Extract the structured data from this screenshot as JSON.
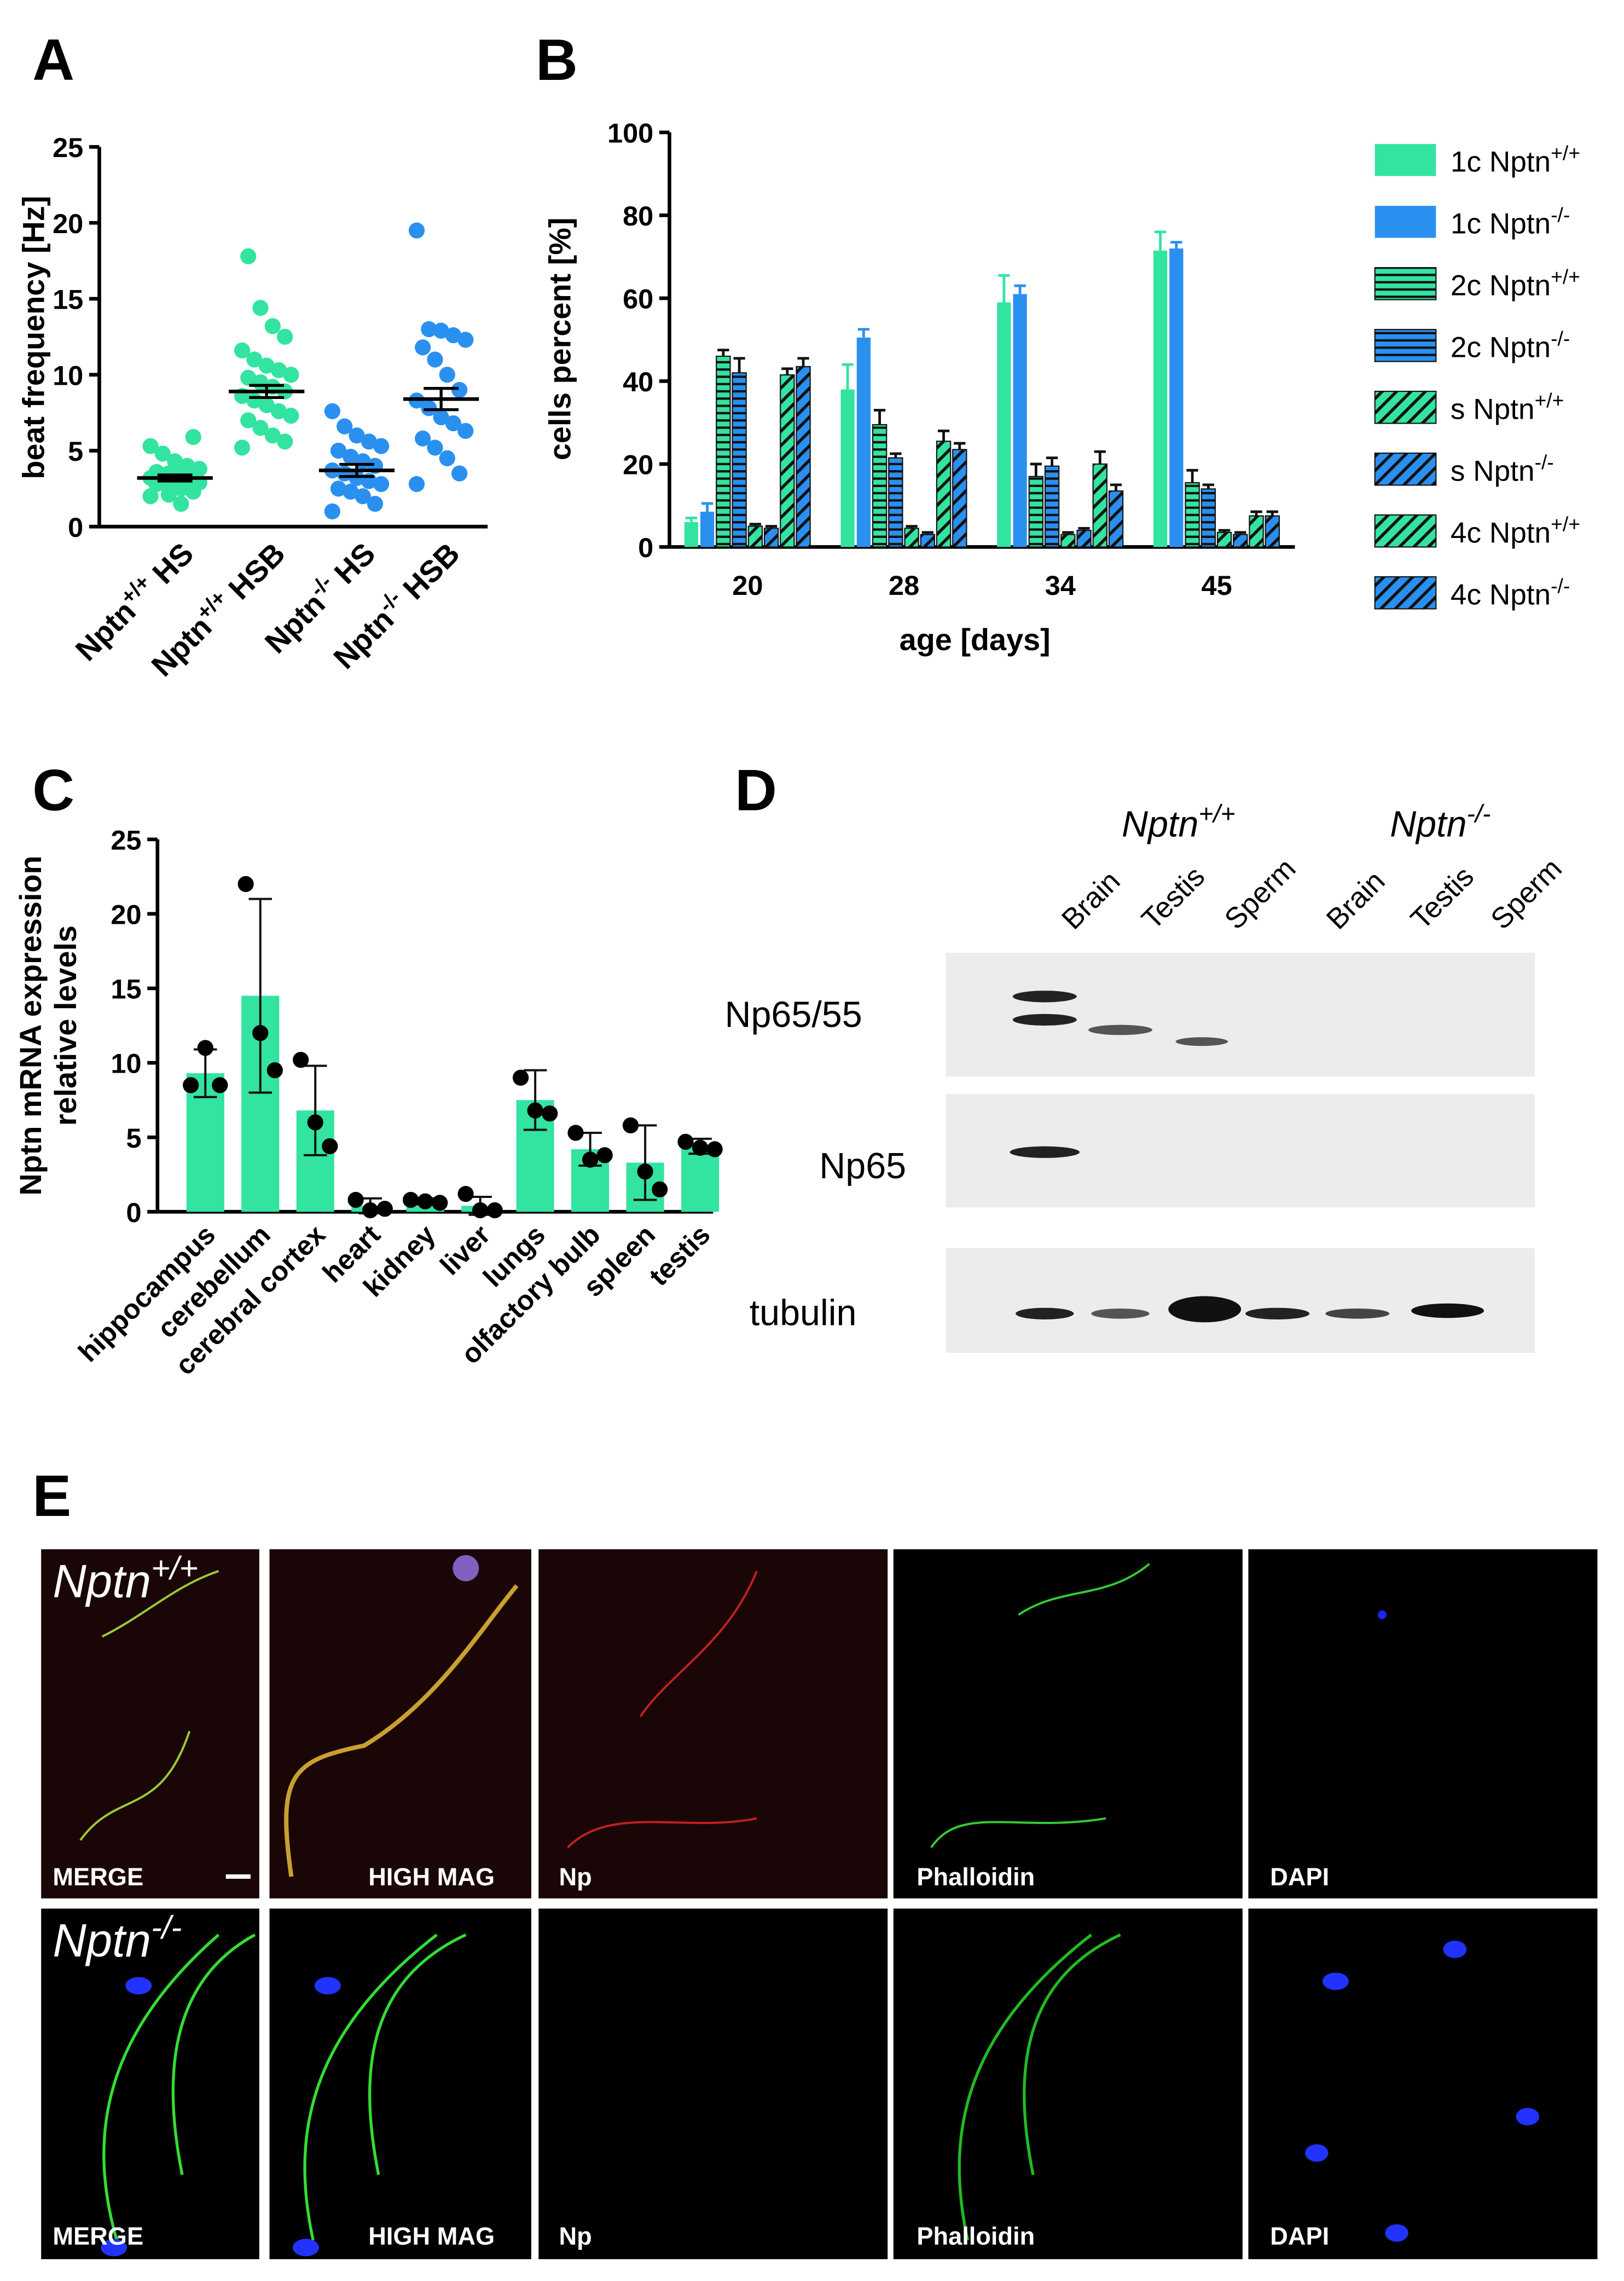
{
  "panel_labels": [
    "A",
    "B",
    "C",
    "D",
    "E"
  ],
  "chart_data": [
    {
      "type": "strip",
      "ylabel": "beat frequency [Hz]",
      "categories": [
        "Nptn+/+ HS",
        "Nptn+/+ HSB",
        "Nptn-/- HS",
        "Nptn-/- HSB"
      ],
      "colors": [
        "#33e3a0",
        "#33e3a0",
        "#2a90f0",
        "#2a90f0"
      ],
      "points": [
        [
          2.0,
          2.3,
          2.5,
          2.6,
          2.8,
          2.9,
          3.0,
          3.0,
          3.1,
          3.2,
          3.3,
          3.4,
          3.5,
          3.6,
          3.8,
          4.0,
          4.3,
          4.8,
          5.3,
          5.9,
          1.5,
          2.1
        ],
        [
          5.2,
          5.6,
          6.0,
          6.5,
          7.0,
          7.3,
          7.6,
          8.0,
          8.3,
          8.6,
          8.9,
          9.2,
          9.5,
          9.8,
          10.0,
          10.3,
          10.6,
          11.0,
          11.6,
          12.5,
          13.2,
          14.4,
          17.8
        ],
        [
          1.0,
          1.5,
          2.0,
          2.3,
          2.5,
          2.8,
          3.0,
          3.2,
          3.5,
          3.7,
          4.0,
          4.3,
          4.6,
          5.0,
          5.3,
          5.6,
          6.0,
          6.6,
          7.6
        ],
        [
          2.8,
          3.5,
          4.5,
          5.2,
          5.8,
          6.3,
          6.8,
          7.2,
          7.8,
          8.3,
          9.0,
          10.0,
          11.0,
          11.8,
          12.3,
          12.6,
          12.9,
          13.0,
          19.5
        ]
      ],
      "means": [
        3.2,
        8.9,
        3.7,
        8.4
      ],
      "sems": [
        0.2,
        0.4,
        0.4,
        0.7
      ],
      "ylim": [
        0,
        25
      ],
      "yticks": [
        0,
        5,
        10,
        15,
        20,
        25
      ]
    },
    {
      "type": "bar",
      "xlabel": "age [days]",
      "ylabel": "cells percent [%]",
      "categories": [
        "20",
        "28",
        "34",
        "45"
      ],
      "series": [
        {
          "name": "1c Nptn+/+",
          "color": "#33e3a0",
          "pattern": "solid",
          "values": [
            6,
            38,
            59,
            71.5
          ],
          "errors": [
            1,
            6,
            6.5,
            4.5
          ]
        },
        {
          "name": "1c Nptn-/-",
          "color": "#2a90f0",
          "pattern": "solid",
          "values": [
            8.5,
            50.5,
            61,
            72
          ],
          "errors": [
            2,
            2,
            2,
            1.5
          ]
        },
        {
          "name": "2c Nptn+/+",
          "color": "#33e3a0",
          "pattern": "horizontal",
          "values": [
            46,
            29.5,
            17,
            15.5
          ],
          "errors": [
            1.5,
            3.5,
            3,
            3
          ]
        },
        {
          "name": "2c Nptn-/-",
          "color": "#2a90f0",
          "pattern": "horizontal",
          "values": [
            42,
            21.5,
            19.5,
            14
          ],
          "errors": [
            3.5,
            1,
            2,
            1
          ]
        },
        {
          "name": "s Nptn+/+",
          "color": "#33e3a0",
          "pattern": "diagonal",
          "values": [
            5,
            4.5,
            3,
            3.5
          ],
          "errors": [
            0.5,
            0.5,
            0.5,
            0.5
          ]
        },
        {
          "name": "s Nptn-/-",
          "color": "#2a90f0",
          "pattern": "diagonal",
          "values": [
            4.5,
            3,
            4,
            3
          ],
          "errors": [
            0.5,
            0.5,
            0.5,
            0.5
          ]
        },
        {
          "name": "4c Nptn+/+",
          "color": "#33e3a0",
          "pattern": "diagonal",
          "values": [
            41.5,
            25.5,
            20,
            7.5
          ],
          "errors": [
            1.5,
            2.5,
            3,
            1
          ]
        },
        {
          "name": "4c Nptn-/-",
          "color": "#2a90f0",
          "pattern": "diagonal",
          "values": [
            43.5,
            23.5,
            13.5,
            7.5
          ],
          "errors": [
            2,
            1.5,
            1.5,
            1
          ]
        }
      ],
      "ylim": [
        0,
        100
      ],
      "yticks": [
        0,
        20,
        40,
        60,
        80,
        100
      ],
      "legend": "right"
    },
    {
      "type": "bar",
      "ylabel": [
        "Nptn mRNA expression",
        "relative levels"
      ],
      "categories": [
        "hippocampus",
        "cerebellum",
        "cerebral cortex",
        "heart",
        "kidney",
        "liver",
        "lungs",
        "olfactory bulb",
        "spleen",
        "testis"
      ],
      "values": [
        9.3,
        14.5,
        6.8,
        0.4,
        0.7,
        0.4,
        7.5,
        4.2,
        3.3,
        4.4
      ],
      "errors": [
        1.6,
        6.5,
        3,
        0.5,
        0.2,
        0.6,
        2,
        1.1,
        2.5,
        0.5
      ],
      "points": [
        [
          8.5,
          11,
          8.5
        ],
        [
          22,
          12,
          9.5
        ],
        [
          10.2,
          6,
          4.4
        ],
        [
          0.8,
          0.1,
          0.2
        ],
        [
          0.8,
          0.7,
          0.6
        ],
        [
          1.2,
          0.1,
          0.1
        ],
        [
          9,
          6.8,
          6.6
        ],
        [
          5.3,
          3.5,
          3.8
        ],
        [
          5.8,
          2.7,
          1.5
        ],
        [
          4.7,
          4.3,
          4.2
        ]
      ],
      "color": "#33e3a0",
      "ylim": [
        0,
        25
      ],
      "yticks": [
        0,
        5,
        10,
        15,
        20,
        25
      ]
    }
  ],
  "blot": {
    "groups": [
      "Nptn+/+",
      "Nptn-/-"
    ],
    "lanes": [
      "Brain",
      "Testis",
      "Sperm",
      "Brain",
      "Testis",
      "Sperm"
    ],
    "rows": [
      "Np65/55",
      "Np65",
      "tubulin"
    ]
  },
  "micrographs": {
    "rows": [
      "Nptn+/+",
      "Nptn-/-"
    ],
    "columns": [
      "MERGE",
      "HIGH MAG",
      "Np",
      "Phalloidin",
      "DAPI"
    ]
  }
}
